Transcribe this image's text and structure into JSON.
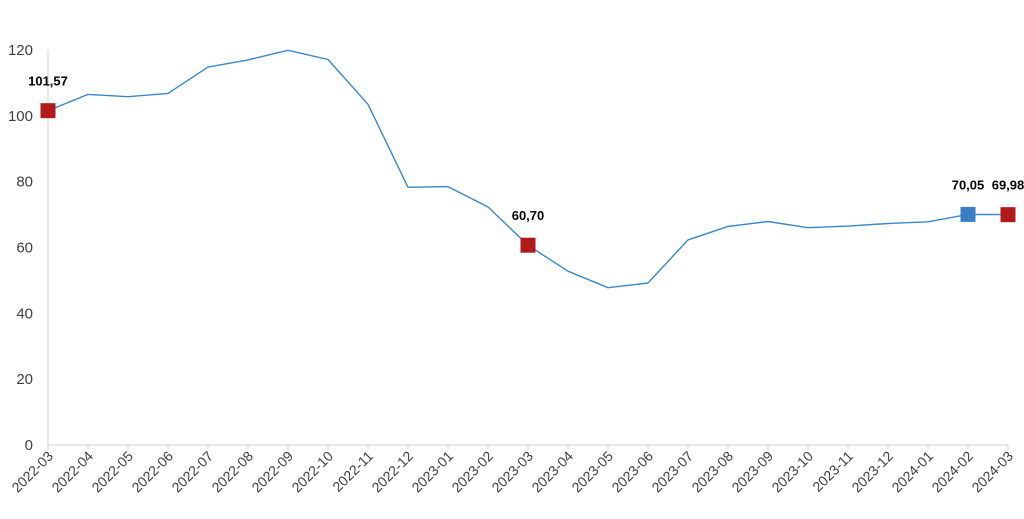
{
  "chart_data": {
    "type": "line",
    "title": "",
    "xlabel": "",
    "ylabel": "",
    "ylim": [
      0,
      120
    ],
    "yticks": [
      0,
      20,
      40,
      60,
      80,
      100,
      120
    ],
    "grid": false,
    "legend": "none",
    "categories": [
      "2022-03",
      "2022-04",
      "2022-05",
      "2022-06",
      "2022-07",
      "2022-08",
      "2022-09",
      "2022-10",
      "2022-11",
      "2022-12",
      "2023-01",
      "2023-02",
      "2023-03",
      "2023-04",
      "2023-05",
      "2023-06",
      "2023-07",
      "2023-08",
      "2023-09",
      "2023-10",
      "2023-11",
      "2023-12",
      "2024-01",
      "2024-02",
      "2024-03"
    ],
    "series": [
      {
        "values": [
          101.57,
          106.5,
          105.8,
          106.8,
          114.8,
          117.0,
          119.9,
          117.1,
          103.5,
          78.3,
          78.5,
          72.3,
          60.7,
          52.8,
          47.8,
          49.2,
          62.3,
          66.4,
          67.9,
          66.0,
          66.5,
          67.3,
          67.8,
          70.05,
          69.98
        ],
        "color": "#3a87c8"
      }
    ],
    "highlights": [
      {
        "index": 0,
        "label": "101,57",
        "color": "#b01a1a"
      },
      {
        "index": 12,
        "label": "60,70",
        "color": "#b01a1a"
      },
      {
        "index": 23,
        "label": "70,05",
        "color": "#3a7fc4"
      },
      {
        "index": 24,
        "label": "69,98",
        "color": "#b01a1a"
      }
    ],
    "axis_color": "#d0d0d0"
  }
}
